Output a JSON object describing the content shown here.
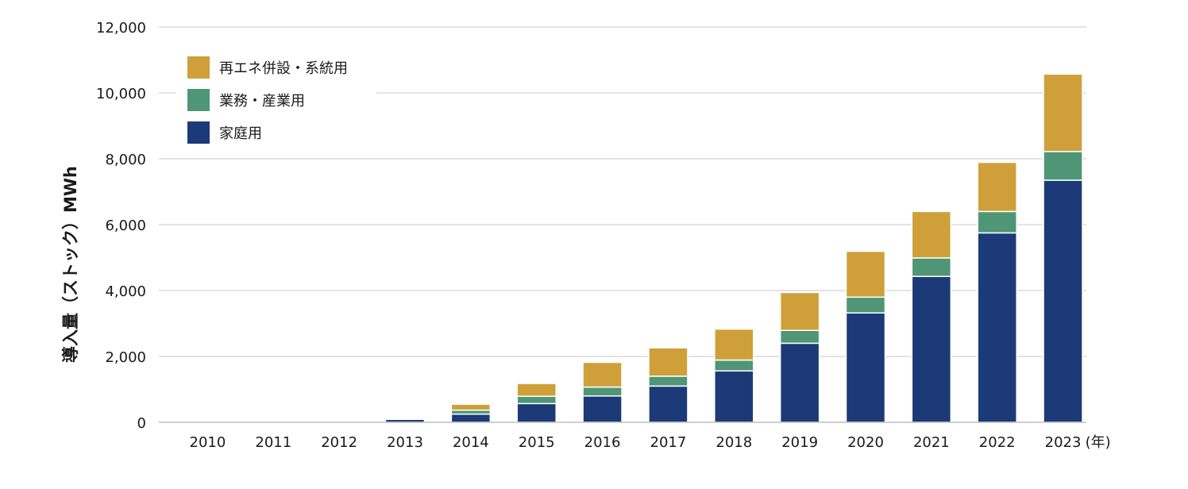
{
  "chart_data": {
    "type": "bar",
    "stacked": true,
    "categories": [
      "2010",
      "2011",
      "2012",
      "2013",
      "2014",
      "2015",
      "2016",
      "2017",
      "2018",
      "2019",
      "2020",
      "2021",
      "2022",
      "2023"
    ],
    "x_unit": "(年)",
    "ylabel": "導入量（ストック）MWh",
    "ylim": [
      0,
      12000
    ],
    "yticks": [
      0,
      2000,
      4000,
      6000,
      8000,
      10000,
      12000
    ],
    "ytick_labels": [
      "0",
      "2,000",
      "4,000",
      "6,000",
      "8,000",
      "10,000",
      "12,000"
    ],
    "grid": true,
    "legend_position": "top-left",
    "series": [
      {
        "name": "家庭用",
        "color": "#1c3a78",
        "values": [
          0,
          0,
          0,
          90,
          250,
          570,
          800,
          1100,
          1560,
          2400,
          3320,
          4430,
          5750,
          7350
        ]
      },
      {
        "name": "業務・産業用",
        "color": "#4f9676",
        "values": [
          0,
          0,
          0,
          10,
          120,
          220,
          270,
          300,
          330,
          390,
          480,
          560,
          650,
          870
        ]
      },
      {
        "name": "再エネ併設・系統用",
        "color": "#cfa03a",
        "values": [
          0,
          0,
          0,
          5,
          180,
          390,
          750,
          860,
          940,
          1150,
          1390,
          1410,
          1490,
          2350
        ]
      }
    ]
  }
}
